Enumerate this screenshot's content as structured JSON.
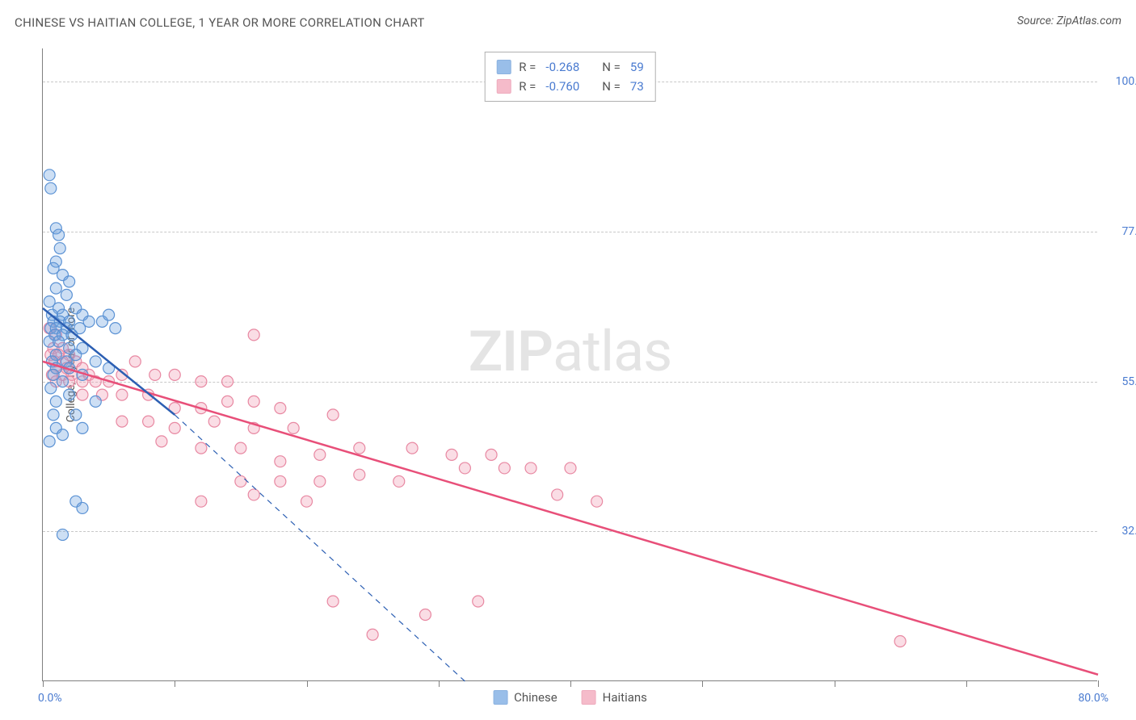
{
  "title": "CHINESE VS HAITIAN COLLEGE, 1 YEAR OR MORE CORRELATION CHART",
  "source_prefix": "Source:",
  "source_name": "ZipAtlas.com",
  "watermark": {
    "bold": "ZIP",
    "light": "atlas"
  },
  "y_axis_label": "College, 1 year or more",
  "chart": {
    "type": "scatter",
    "background_color": "#ffffff",
    "grid_color": "#c8c8c8",
    "axis_color": "#808080",
    "label_color": "#4a7bd0",
    "text_color": "#555555",
    "xlim": [
      0,
      80
    ],
    "ylim": [
      10,
      105
    ],
    "x_axis_min_label": "0.0%",
    "x_axis_max_label": "80.0%",
    "x_ticks": [
      0,
      10,
      20,
      30,
      40,
      50,
      60,
      70,
      80
    ],
    "y_grid": [
      {
        "value": 100.0,
        "label": "100.0%"
      },
      {
        "value": 77.5,
        "label": "77.5%"
      },
      {
        "value": 55.0,
        "label": "55.0%"
      },
      {
        "value": 32.5,
        "label": "32.5%"
      }
    ],
    "marker_radius": 7,
    "marker_stroke_width": 1.2,
    "marker_fill_opacity": 0.35,
    "line_width": 2.5,
    "dashed_line_width": 1.2
  },
  "series": {
    "chinese": {
      "label": "Chinese",
      "color": "#6fa3e0",
      "stroke": "#5b92d4",
      "line_color": "#2c5fb3",
      "r_label": "R =",
      "r_value": "-0.268",
      "n_label": "N =",
      "n_value": "59",
      "regression": {
        "x1": 0,
        "y1": 66,
        "x2": 10,
        "y2": 50
      },
      "extrapolation": {
        "x1": 10,
        "y1": 50,
        "x2": 32,
        "y2": 10
      },
      "points": [
        [
          0.5,
          86
        ],
        [
          0.6,
          84
        ],
        [
          1.0,
          78
        ],
        [
          1.2,
          77
        ],
        [
          1.3,
          75
        ],
        [
          1.0,
          73
        ],
        [
          0.8,
          72
        ],
        [
          1.5,
          71
        ],
        [
          2.0,
          70
        ],
        [
          1.0,
          69
        ],
        [
          1.8,
          68
        ],
        [
          0.5,
          67
        ],
        [
          1.2,
          66
        ],
        [
          2.5,
          66
        ],
        [
          0.7,
          65
        ],
        [
          1.5,
          65
        ],
        [
          3.0,
          65
        ],
        [
          0.8,
          64
        ],
        [
          1.3,
          64
        ],
        [
          2.0,
          64
        ],
        [
          3.5,
          64
        ],
        [
          4.5,
          64
        ],
        [
          0.6,
          63
        ],
        [
          1.0,
          63
        ],
        [
          1.8,
          63
        ],
        [
          2.8,
          63
        ],
        [
          5.0,
          65
        ],
        [
          0.9,
          62
        ],
        [
          1.5,
          62
        ],
        [
          2.2,
          62
        ],
        [
          0.5,
          61
        ],
        [
          1.2,
          61
        ],
        [
          2.0,
          60
        ],
        [
          3.0,
          60
        ],
        [
          5.5,
          63
        ],
        [
          1.0,
          59
        ],
        [
          2.5,
          59
        ],
        [
          0.7,
          58
        ],
        [
          1.8,
          58
        ],
        [
          4.0,
          58
        ],
        [
          1.0,
          57
        ],
        [
          2.0,
          57
        ],
        [
          0.8,
          56
        ],
        [
          3.0,
          56
        ],
        [
          5.0,
          57
        ],
        [
          1.5,
          55
        ],
        [
          0.6,
          54
        ],
        [
          2.0,
          53
        ],
        [
          1.0,
          52
        ],
        [
          4.0,
          52
        ],
        [
          0.8,
          50
        ],
        [
          2.5,
          50
        ],
        [
          1.0,
          48
        ],
        [
          3.0,
          48
        ],
        [
          1.5,
          47
        ],
        [
          0.5,
          46
        ],
        [
          2.5,
          37
        ],
        [
          3.0,
          36
        ],
        [
          1.5,
          32
        ]
      ]
    },
    "haitians": {
      "label": "Haitians",
      "color": "#f29fb5",
      "stroke": "#e888a2",
      "line_color": "#e84f79",
      "r_label": "R =",
      "r_value": "-0.760",
      "n_label": "N =",
      "n_value": "73",
      "regression": {
        "x1": 0,
        "y1": 58,
        "x2": 80,
        "y2": 11
      },
      "points": [
        [
          0.5,
          63
        ],
        [
          1.0,
          62
        ],
        [
          0.8,
          60
        ],
        [
          1.5,
          60
        ],
        [
          0.6,
          59
        ],
        [
          1.2,
          59
        ],
        [
          2.0,
          59
        ],
        [
          0.9,
          58
        ],
        [
          1.5,
          58
        ],
        [
          2.5,
          58
        ],
        [
          1.0,
          57
        ],
        [
          1.8,
          57
        ],
        [
          3.0,
          57
        ],
        [
          0.7,
          56
        ],
        [
          1.5,
          56
        ],
        [
          2.2,
          56
        ],
        [
          3.5,
          56
        ],
        [
          1.0,
          55
        ],
        [
          2.0,
          55
        ],
        [
          3.0,
          55
        ],
        [
          4.0,
          55
        ],
        [
          5.0,
          55
        ],
        [
          6.0,
          56
        ],
        [
          7.0,
          58
        ],
        [
          8.5,
          56
        ],
        [
          10.0,
          56
        ],
        [
          12.0,
          55
        ],
        [
          14.0,
          55
        ],
        [
          16.0,
          62
        ],
        [
          3.0,
          53
        ],
        [
          4.5,
          53
        ],
        [
          6.0,
          53
        ],
        [
          8.0,
          53
        ],
        [
          10.0,
          51
        ],
        [
          12.0,
          51
        ],
        [
          14.0,
          52
        ],
        [
          16.0,
          52
        ],
        [
          18.0,
          51
        ],
        [
          6.0,
          49
        ],
        [
          8.0,
          49
        ],
        [
          10.0,
          48
        ],
        [
          13.0,
          49
        ],
        [
          16.0,
          48
        ],
        [
          19.0,
          48
        ],
        [
          22.0,
          50
        ],
        [
          9.0,
          46
        ],
        [
          12.0,
          45
        ],
        [
          15.0,
          45
        ],
        [
          18.0,
          43
        ],
        [
          21.0,
          44
        ],
        [
          24.0,
          45
        ],
        [
          28.0,
          45
        ],
        [
          31.0,
          44
        ],
        [
          34.0,
          44
        ],
        [
          15.0,
          40
        ],
        [
          18.0,
          40
        ],
        [
          21.0,
          40
        ],
        [
          24.0,
          41
        ],
        [
          27.0,
          40
        ],
        [
          32.0,
          42
        ],
        [
          35.0,
          42
        ],
        [
          37.0,
          42
        ],
        [
          40.0,
          42
        ],
        [
          12.0,
          37
        ],
        [
          16.0,
          38
        ],
        [
          20.0,
          37
        ],
        [
          39.0,
          38
        ],
        [
          42.0,
          37
        ],
        [
          29.0,
          20
        ],
        [
          25.0,
          17
        ],
        [
          65.0,
          16
        ],
        [
          33.0,
          22
        ],
        [
          22.0,
          22
        ]
      ]
    }
  }
}
